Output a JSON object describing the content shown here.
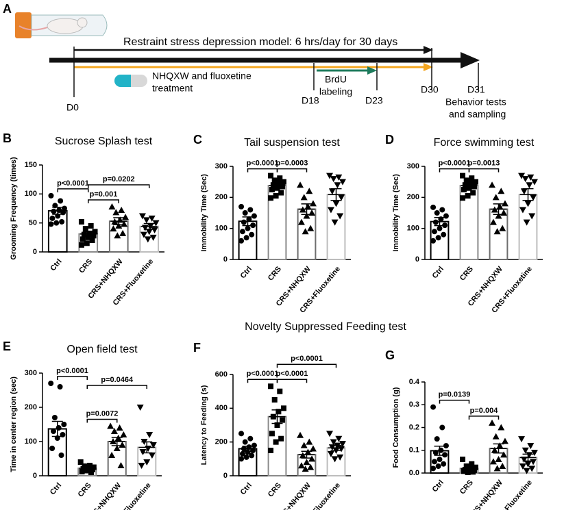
{
  "panel_a": {
    "letter": "A",
    "model": "Restraint stress depression model: 6 hrs/day for 30 days",
    "treatment": [
      "NHQXW and fluoxetine",
      "treatment"
    ],
    "brdu": [
      "BrdU",
      "labeling"
    ],
    "days": [
      "D0",
      "D18",
      "D23",
      "D30",
      "D31"
    ],
    "final": [
      "Behavior tests",
      "and sampling"
    ]
  },
  "section_title": "Novelty Suppressed Feeding test",
  "chart_data": [
    {
      "type": "bar",
      "panel": "B",
      "title": "Sucrose Splash test",
      "ylabel": "Grooming Frequency (times)",
      "categories": [
        "Ctrl",
        "CRS",
        "CRS+NHQXW",
        "CRS+Fluoxetine"
      ],
      "values": [
        71,
        31,
        53,
        44
      ],
      "errors": [
        6,
        4,
        6,
        5
      ],
      "points": [
        [
          97,
          88,
          80,
          75,
          72,
          70,
          68,
          62,
          58,
          52,
          50,
          48
        ],
        [
          52,
          45,
          40,
          35,
          32,
          30,
          28,
          25,
          22,
          20,
          15,
          12
        ],
        [
          78,
          72,
          68,
          60,
          55,
          52,
          48,
          45,
          40,
          32,
          28
        ],
        [
          62,
          58,
          55,
          50,
          45,
          42,
          38,
          35,
          30,
          25,
          22
        ]
      ],
      "markers": [
        "circle",
        "square",
        "triangle-up",
        "triangle-down"
      ],
      "bar_colors": [
        "#000000",
        "#8a8a8a",
        "#6e6e6e",
        "#bdbdbd"
      ],
      "ylim": [
        0,
        150
      ],
      "yticks": [
        0,
        50,
        100,
        150
      ],
      "comparisons": [
        {
          "label": "p<0.0001",
          "groups": [
            0,
            1
          ]
        },
        {
          "label": "p=0.001",
          "groups": [
            1,
            2
          ]
        },
        {
          "label": "p=0.0202",
          "groups": [
            1,
            3
          ]
        }
      ]
    },
    {
      "type": "bar",
      "panel": "C",
      "title": "Tail suspension test",
      "ylabel": "Immobility Time (Sec)",
      "categories": [
        "Ctrl",
        "CRS",
        "CRS+NHQXW",
        "CRS+Fluoxetine"
      ],
      "values": [
        123,
        238,
        162,
        209
      ],
      "errors": [
        14,
        8,
        17,
        19
      ],
      "points": [
        [
          170,
          160,
          150,
          140,
          130,
          120,
          110,
          100,
          90,
          80,
          70,
          60
        ],
        [
          270,
          262,
          255,
          250,
          245,
          240,
          235,
          230,
          225,
          215,
          205,
          198
        ],
        [
          240,
          220,
          200,
          180,
          170,
          160,
          150,
          140,
          120,
          100,
          90
        ],
        [
          270,
          265,
          260,
          250,
          240,
          220,
          200,
          180,
          160,
          140,
          120
        ]
      ],
      "markers": [
        "circle",
        "square",
        "triangle-up",
        "triangle-down"
      ],
      "bar_colors": [
        "#000000",
        "#8a8a8a",
        "#6e6e6e",
        "#bdbdbd"
      ],
      "ylim": [
        0,
        300
      ],
      "yticks": [
        0,
        100,
        200,
        300
      ],
      "comparisons": [
        {
          "label": "p<0.0001",
          "groups": [
            0,
            1
          ]
        },
        {
          "label": "p=0.0003",
          "groups": [
            1,
            2
          ]
        }
      ]
    },
    {
      "type": "bar",
      "panel": "D",
      "title": "Force swimming test",
      "ylabel": "Immobility Time (Sec)",
      "categories": [
        "Ctrl",
        "CRS",
        "CRS+NHQXW",
        "CRS+Fluoxetine"
      ],
      "values": [
        122,
        238,
        162,
        209
      ],
      "errors": [
        13,
        8,
        17,
        19
      ],
      "points": [
        [
          168,
          160,
          150,
          140,
          130,
          120,
          110,
          100,
          90,
          80,
          70,
          60
        ],
        [
          270,
          262,
          255,
          250,
          245,
          240,
          235,
          230,
          225,
          215,
          205,
          198
        ],
        [
          240,
          220,
          200,
          180,
          170,
          160,
          150,
          140,
          120,
          100,
          90
        ],
        [
          270,
          265,
          260,
          250,
          240,
          220,
          200,
          180,
          160,
          140,
          120
        ]
      ],
      "markers": [
        "circle",
        "square",
        "triangle-up",
        "triangle-down"
      ],
      "bar_colors": [
        "#000000",
        "#8a8a8a",
        "#6e6e6e",
        "#bdbdbd"
      ],
      "ylim": [
        0,
        300
      ],
      "yticks": [
        0,
        100,
        200,
        300
      ],
      "comparisons": [
        {
          "label": "p<0.0001",
          "groups": [
            0,
            1
          ]
        },
        {
          "label": "p=0.0013",
          "groups": [
            1,
            2
          ]
        }
      ]
    },
    {
      "type": "bar",
      "panel": "E",
      "title": "Open field test",
      "ylabel": "Time in center region (sec)",
      "categories": [
        "Ctrl",
        "CRS",
        "CRS+NHQXW",
        "CRS+Fluoxetine"
      ],
      "values": [
        137,
        22,
        100,
        83
      ],
      "errors": [
        22,
        3,
        12,
        16
      ],
      "points": [
        [
          270,
          260,
          170,
          150,
          140,
          130,
          120,
          110,
          80,
          60
        ],
        [
          40,
          30,
          28,
          25,
          22,
          20,
          18,
          15,
          12,
          10
        ],
        [
          145,
          140,
          130,
          120,
          110,
          100,
          90,
          80,
          60,
          30
        ],
        [
          200,
          120,
          100,
          90,
          80,
          70,
          60,
          40,
          30
        ]
      ],
      "markers": [
        "circle",
        "square",
        "triangle-up",
        "triangle-down"
      ],
      "bar_colors": [
        "#000000",
        "#8a8a8a",
        "#6e6e6e",
        "#bdbdbd"
      ],
      "ylim": [
        0,
        300
      ],
      "yticks": [
        0,
        100,
        200,
        300
      ],
      "comparisons": [
        {
          "label": "p<0.0001",
          "groups": [
            0,
            1
          ]
        },
        {
          "label": "p=0.0072",
          "groups": [
            1,
            2
          ]
        },
        {
          "label": "p=0.0464",
          "groups": [
            1,
            3
          ]
        }
      ]
    },
    {
      "type": "bar",
      "panel": "F",
      "ylabel": "Latency to Feeding (s)",
      "categories": [
        "Ctrl",
        "CRS",
        "CRS+NHQXW",
        "CRS+Fluoxetine"
      ],
      "values": [
        160,
        350,
        125,
        165
      ],
      "errors": [
        15,
        40,
        20,
        15
      ],
      "points": [
        [
          250,
          220,
          200,
          180,
          170,
          160,
          150,
          140,
          130,
          120,
          110,
          100
        ],
        [
          530,
          500,
          450,
          400,
          380,
          350,
          330,
          300,
          250,
          220,
          200,
          150
        ],
        [
          240,
          200,
          180,
          160,
          140,
          120,
          100,
          80,
          60,
          50,
          40
        ],
        [
          250,
          220,
          200,
          190,
          180,
          170,
          160,
          150,
          130,
          110,
          100
        ]
      ],
      "markers": [
        "circle",
        "square",
        "triangle-up",
        "triangle-down"
      ],
      "bar_colors": [
        "#000000",
        "#8a8a8a",
        "#6e6e6e",
        "#bdbdbd"
      ],
      "ylim": [
        0,
        600
      ],
      "yticks": [
        0,
        200,
        400,
        600
      ],
      "comparisons": [
        {
          "label": "p<0.0001",
          "groups": [
            0,
            1
          ]
        },
        {
          "label": "p<0.0001",
          "groups": [
            1,
            2
          ]
        },
        {
          "label": "p<0.0001",
          "groups": [
            1,
            3
          ]
        }
      ]
    },
    {
      "type": "bar",
      "panel": "G",
      "ylabel": "Food Consumption (g)",
      "categories": [
        "Ctrl",
        "CRS",
        "CRS+NHQXW",
        "CRS+Fluoxetine"
      ],
      "values": [
        0.098,
        0.02,
        0.108,
        0.068
      ],
      "errors": [
        0.02,
        0.005,
        0.02,
        0.015
      ],
      "points": [
        [
          0.29,
          0.2,
          0.15,
          0.12,
          0.1,
          0.09,
          0.08,
          0.06,
          0.05,
          0.04,
          0.03,
          0.02
        ],
        [
          0.06,
          0.04,
          0.03,
          0.025,
          0.02,
          0.015,
          0.012,
          0.01,
          0.008,
          0.005,
          0.003
        ],
        [
          0.22,
          0.2,
          0.16,
          0.14,
          0.12,
          0.1,
          0.08,
          0.06,
          0.05,
          0.03,
          0.02
        ],
        [
          0.15,
          0.12,
          0.1,
          0.09,
          0.08,
          0.06,
          0.05,
          0.04,
          0.03,
          0.02,
          0.01
        ]
      ],
      "markers": [
        "circle",
        "square",
        "triangle-up",
        "triangle-down"
      ],
      "bar_colors": [
        "#000000",
        "#8a8a8a",
        "#6e6e6e",
        "#bdbdbd"
      ],
      "ylim": [
        0,
        0.4
      ],
      "yticks": [
        {
          "value": 0,
          "label": "0.0"
        },
        0.1,
        0.2,
        0.3,
        0.4
      ],
      "comparisons": [
        {
          "label": "p=0.0139",
          "groups": [
            0,
            1
          ]
        },
        {
          "label": "p=0.004",
          "groups": [
            1,
            2
          ]
        }
      ]
    }
  ]
}
